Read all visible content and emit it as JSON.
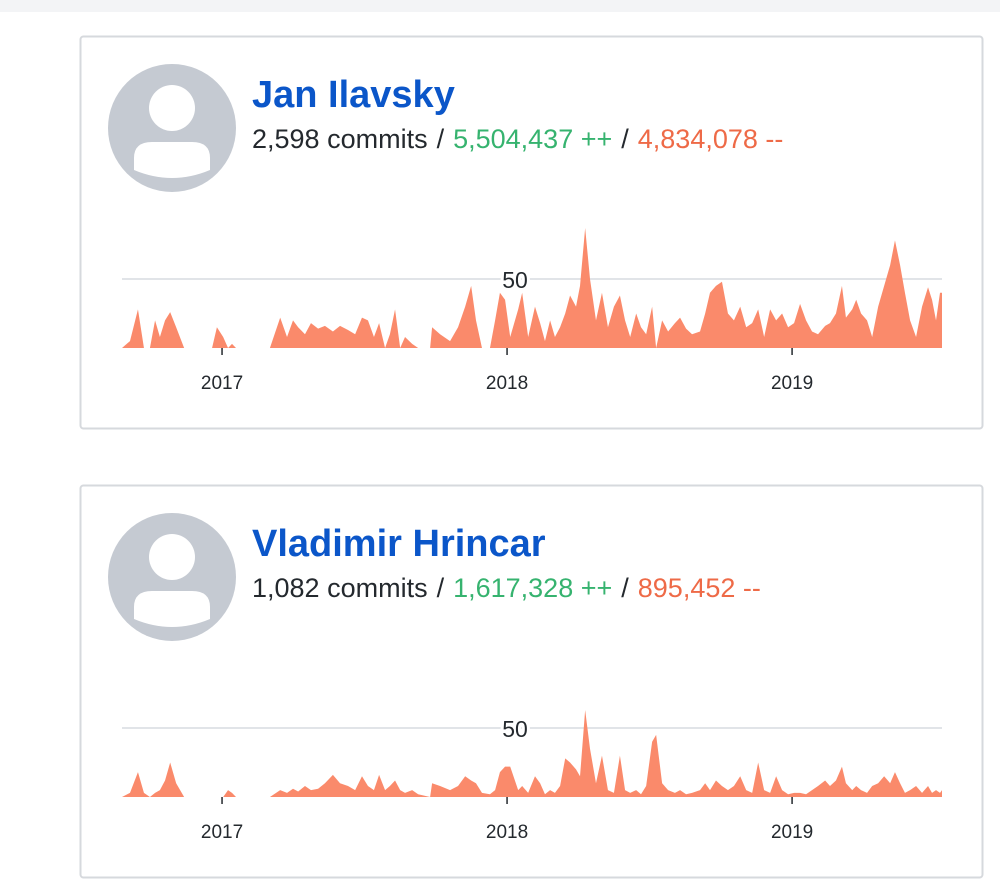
{
  "contributors": [
    {
      "name": "Jan Ilavsky",
      "commits": "2,598 commits",
      "separator": "/",
      "additions": "5,504,437 ++",
      "deletions": "4,834,078 --"
    },
    {
      "name": "Vladimir Hrincar",
      "commits": "1,082 commits",
      "separator": "/",
      "additions": "1,617,328 ++",
      "deletions": "895,452 --"
    }
  ],
  "chart_data": [
    {
      "type": "area",
      "color": "#fa8a6b",
      "x": [
        2016.649,
        2016.677,
        2016.705,
        2016.726,
        2016.747,
        2016.765,
        2016.782,
        2016.8,
        2016.818,
        2016.839,
        2016.867,
        2016.965,
        2016.982,
        2017.004,
        2017.021,
        2017.035,
        2017.049,
        2017.168,
        2017.204,
        2017.228,
        2017.249,
        2017.267,
        2017.291,
        2017.312,
        2017.337,
        2017.361,
        2017.389,
        2017.414,
        2017.442,
        2017.467,
        2017.491,
        2017.512,
        2017.533,
        2017.551,
        2017.572,
        2017.589,
        2017.607,
        2017.625,
        2017.642,
        2017.667,
        2017.688,
        2017.73,
        2017.737,
        2017.765,
        2017.8,
        2017.828,
        2017.853,
        2017.874,
        2017.891,
        2017.912,
        2017.94,
        2017.958,
        2017.975,
        2017.993,
        2018.011,
        2018.039,
        2018.053,
        2018.074,
        2018.098,
        2018.116,
        2018.133,
        2018.151,
        2018.168,
        2018.186,
        2018.204,
        2018.221,
        2018.242,
        2018.256,
        2018.274,
        2018.291,
        2018.312,
        2018.333,
        2018.354,
        2018.375,
        2018.396,
        2018.414,
        2018.432,
        2018.453,
        2018.47,
        2018.488,
        2018.509,
        2018.523,
        2018.544,
        2018.565,
        2018.589,
        2018.607,
        2018.628,
        2018.649,
        2018.677,
        2018.695,
        2018.712,
        2018.733,
        2018.754,
        2018.775,
        2018.796,
        2018.818,
        2018.839,
        2018.86,
        2018.881,
        2018.902,
        2018.923,
        2018.944,
        2018.965,
        2018.986,
        2019.007,
        2019.028,
        2019.049,
        2019.07,
        2019.091,
        2019.116,
        2019.133,
        2019.154,
        2019.175,
        2019.189,
        2019.211,
        2019.225,
        2019.242,
        2019.263,
        2019.281,
        2019.302,
        2019.323,
        2019.344,
        2019.361,
        2019.379,
        2019.396,
        2019.414,
        2019.435,
        2019.456,
        2019.477,
        2019.491,
        2019.505,
        2019.519,
        2019.526
      ],
      "values": [
        0,
        5,
        28,
        0,
        0,
        20,
        8,
        20,
        26,
        15,
        0,
        0,
        15,
        8,
        0,
        3,
        0,
        0,
        22,
        8,
        20,
        15,
        10,
        18,
        14,
        16,
        12,
        16,
        13,
        10,
        22,
        20,
        8,
        18,
        0,
        10,
        28,
        0,
        8,
        3,
        0,
        0,
        15,
        10,
        5,
        15,
        30,
        45,
        20,
        0,
        0,
        20,
        40,
        35,
        8,
        28,
        40,
        8,
        30,
        18,
        5,
        20,
        8,
        15,
        25,
        38,
        30,
        45,
        87,
        50,
        20,
        40,
        15,
        30,
        38,
        20,
        8,
        25,
        15,
        10,
        30,
        0,
        20,
        12,
        18,
        22,
        14,
        10,
        12,
        25,
        40,
        45,
        48,
        25,
        20,
        30,
        15,
        18,
        28,
        8,
        28,
        20,
        25,
        15,
        18,
        32,
        20,
        12,
        10,
        16,
        18,
        25,
        45,
        22,
        28,
        35,
        25,
        20,
        8,
        30,
        45,
        60,
        78,
        60,
        40,
        20,
        8,
        30,
        44,
        35,
        20,
        40,
        40
      ],
      "xlim": [
        2016.649,
        2019.526
      ],
      "ylim": [
        0,
        90
      ],
      "xticks": [
        2017,
        2018,
        2019
      ],
      "yticks": [
        50
      ],
      "grid": true
    },
    {
      "type": "area",
      "color": "#fa8a6b",
      "x": [
        2016.649,
        2016.677,
        2016.705,
        2016.726,
        2016.747,
        2016.765,
        2016.782,
        2016.8,
        2016.818,
        2016.839,
        2016.867,
        2016.965,
        2016.982,
        2017.004,
        2017.021,
        2017.035,
        2017.049,
        2017.168,
        2017.204,
        2017.228,
        2017.249,
        2017.267,
        2017.291,
        2017.312,
        2017.337,
        2017.361,
        2017.389,
        2017.414,
        2017.442,
        2017.467,
        2017.491,
        2017.512,
        2017.533,
        2017.551,
        2017.572,
        2017.589,
        2017.607,
        2017.625,
        2017.642,
        2017.667,
        2017.688,
        2017.73,
        2017.737,
        2017.765,
        2017.8,
        2017.828,
        2017.853,
        2017.874,
        2017.891,
        2017.912,
        2017.94,
        2017.958,
        2017.975,
        2017.993,
        2018.011,
        2018.039,
        2018.053,
        2018.074,
        2018.098,
        2018.116,
        2018.133,
        2018.151,
        2018.168,
        2018.186,
        2018.204,
        2018.221,
        2018.242,
        2018.256,
        2018.274,
        2018.291,
        2018.312,
        2018.333,
        2018.354,
        2018.375,
        2018.396,
        2018.414,
        2018.432,
        2018.453,
        2018.47,
        2018.488,
        2018.509,
        2018.523,
        2018.544,
        2018.565,
        2018.589,
        2018.607,
        2018.628,
        2018.649,
        2018.677,
        2018.695,
        2018.712,
        2018.733,
        2018.754,
        2018.775,
        2018.796,
        2018.818,
        2018.839,
        2018.86,
        2018.881,
        2018.902,
        2018.923,
        2018.944,
        2018.965,
        2018.986,
        2019.007,
        2019.028,
        2019.049,
        2019.07,
        2019.091,
        2019.116,
        2019.133,
        2019.154,
        2019.175,
        2019.189,
        2019.211,
        2019.225,
        2019.242,
        2019.263,
        2019.281,
        2019.302,
        2019.323,
        2019.344,
        2019.361,
        2019.379,
        2019.396,
        2019.414,
        2019.435,
        2019.456,
        2019.477,
        2019.491,
        2019.505,
        2019.519,
        2019.526
      ],
      "values": [
        0,
        3,
        18,
        3,
        0,
        3,
        5,
        12,
        25,
        10,
        0,
        0,
        0,
        0,
        5,
        3,
        0,
        0,
        5,
        3,
        6,
        4,
        8,
        5,
        6,
        10,
        16,
        10,
        8,
        5,
        15,
        8,
        5,
        16,
        5,
        8,
        12,
        5,
        3,
        5,
        2,
        0,
        10,
        8,
        5,
        8,
        15,
        12,
        10,
        3,
        2,
        5,
        18,
        22,
        22,
        5,
        8,
        3,
        15,
        10,
        2,
        5,
        3,
        8,
        28,
        25,
        20,
        15,
        63,
        35,
        10,
        30,
        5,
        3,
        30,
        5,
        3,
        5,
        2,
        8,
        40,
        45,
        10,
        5,
        3,
        5,
        2,
        3,
        5,
        10,
        5,
        12,
        8,
        5,
        8,
        15,
        5,
        3,
        25,
        5,
        3,
        15,
        5,
        2,
        3,
        3,
        2,
        5,
        8,
        12,
        8,
        12,
        22,
        10,
        5,
        8,
        5,
        3,
        8,
        10,
        15,
        10,
        18,
        10,
        3,
        5,
        8,
        3,
        8,
        3,
        5,
        3,
        5
      ],
      "xlim": [
        2016.649,
        2019.526
      ],
      "ylim": [
        0,
        90
      ],
      "xticks": [
        2017,
        2018,
        2019
      ],
      "yticks": [
        50
      ],
      "grid": true
    }
  ]
}
